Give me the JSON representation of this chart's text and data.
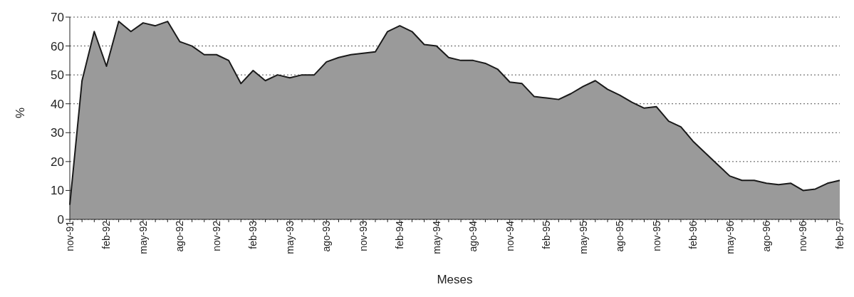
{
  "chart_data": {
    "type": "area",
    "xlabel": "Meses",
    "ylabel": "%",
    "categories": [
      "nov-91",
      null,
      null,
      "feb-92",
      null,
      null,
      "may-92",
      null,
      null,
      "ago-92",
      null,
      null,
      "nov-92",
      null,
      null,
      "feb-93",
      null,
      null,
      "may-93",
      null,
      null,
      "ago-93",
      null,
      null,
      "nov-93",
      null,
      null,
      "feb-94",
      null,
      null,
      "may-94",
      null,
      null,
      "ago-94",
      null,
      null,
      "nov-94",
      null,
      null,
      "feb-95",
      null,
      null,
      "may-95",
      null,
      null,
      "ago-95",
      null,
      null,
      "nov-95",
      null,
      null,
      "feb-96",
      null,
      null,
      "may-96",
      null,
      null,
      "ago-96",
      null,
      null,
      "nov-96",
      null,
      null,
      "feb-97"
    ],
    "series": [
      {
        "color": "#9a9a9a",
        "values": [
          5,
          48,
          65,
          53,
          68.5,
          65,
          68,
          67,
          68.5,
          61.5,
          60,
          57,
          57,
          55,
          47,
          51.5,
          48,
          50,
          49,
          50,
          50,
          54.5,
          56,
          57,
          57.5,
          58,
          65,
          67,
          65,
          60.5,
          60,
          56,
          55,
          55,
          54,
          52,
          47.5,
          47,
          42.5,
          42,
          41.5,
          43.5,
          46,
          48,
          45,
          43,
          40.5,
          38.5,
          39,
          34,
          32,
          27,
          23,
          19,
          15,
          13.5,
          13.5,
          12.5,
          12,
          12.5,
          10,
          10.5,
          12.5,
          13.5
        ]
      }
    ],
    "ylim": [
      0,
      70
    ],
    "yticks": [
      0,
      10,
      20,
      30,
      40,
      50,
      60,
      70
    ],
    "grid": "y",
    "legend": false
  }
}
